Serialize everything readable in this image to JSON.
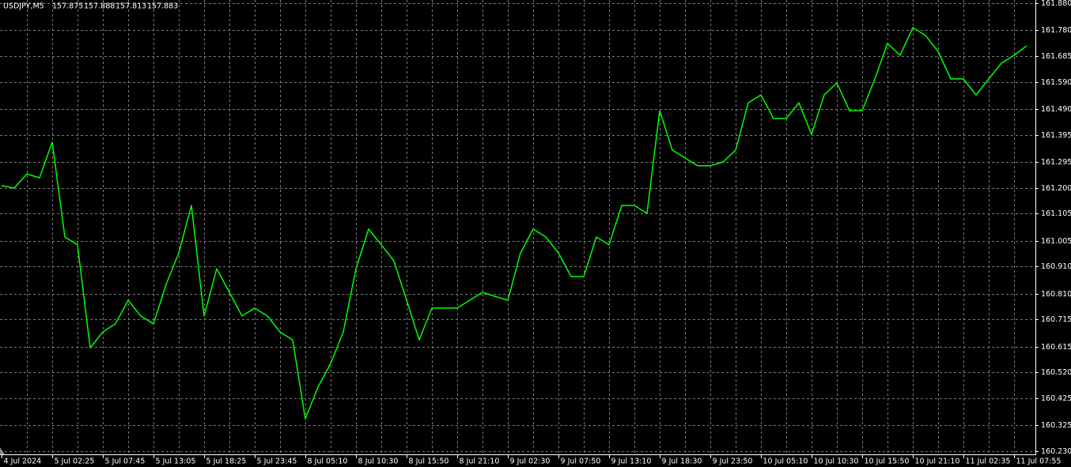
{
  "chart_data": {
    "type": "line",
    "symbol": "USDJPY,M5",
    "quote": [
      157.875,
      157.888,
      157.813,
      157.883
    ],
    "categories": [
      "4 Jul 2024",
      null,
      null,
      null,
      "5 Jul 02:25",
      null,
      null,
      null,
      "5 Jul 07:45",
      null,
      null,
      null,
      "5 Jul 13:05",
      null,
      null,
      null,
      "5 Jul 18:25",
      null,
      null,
      null,
      "5 Jul 23:45",
      null,
      null,
      null,
      "8 Jul 05:10",
      null,
      null,
      null,
      "8 Jul 10:30",
      null,
      null,
      null,
      "8 Jul 15:50",
      null,
      null,
      null,
      "8 Jul 21:10",
      null,
      null,
      null,
      "9 Jul 02:30",
      null,
      null,
      null,
      "9 Jul 07:50",
      null,
      null,
      null,
      "9 Jul 13:10",
      null,
      null,
      null,
      "9 Jul 18:30",
      null,
      null,
      null,
      "9 Jul 23:50",
      null,
      null,
      null,
      "10 Jul 05:10",
      null,
      null,
      null,
      "10 Jul 10:30",
      null,
      null,
      null,
      "10 Jul 15:50",
      null,
      null,
      null,
      "10 Jul 21:10",
      null,
      null,
      null,
      "11 Jul 02:35",
      null,
      null,
      null,
      "11 Jul 07:55",
      null
    ],
    "values": [
      161.208,
      161.199,
      161.251,
      161.237,
      161.368,
      161.019,
      160.99,
      160.611,
      160.669,
      160.699,
      160.786,
      160.728,
      160.699,
      160.844,
      160.96,
      161.135,
      160.728,
      160.902,
      160.815,
      160.728,
      160.757,
      160.728,
      160.669,
      160.64,
      160.349,
      160.466,
      160.553,
      160.669,
      160.902,
      161.048,
      160.99,
      160.931,
      160.786,
      160.64,
      160.757,
      160.757,
      160.757,
      160.786,
      160.815,
      160.8,
      160.786,
      160.96,
      161.048,
      161.019,
      160.96,
      160.873,
      160.873,
      161.019,
      160.99,
      161.135,
      161.135,
      161.106,
      161.484,
      161.339,
      161.31,
      161.281,
      161.281,
      161.295,
      161.339,
      161.513,
      161.542,
      161.455,
      161.455,
      161.513,
      161.397,
      161.542,
      161.586,
      161.484,
      161.484,
      161.601,
      161.732,
      161.688,
      161.79,
      161.761,
      161.702,
      161.601,
      161.601,
      161.542,
      161.601,
      161.659,
      161.688,
      161.723
    ],
    "color": "#00ff00",
    "ylim": [
      160.23,
      161.88
    ],
    "yticks": [
      {
        "value": 161.88,
        "label": "161.880"
      },
      {
        "value": 161.78,
        "label": "161.780"
      },
      161.685,
      {
        "value": 161.59,
        "label": "161.590"
      },
      {
        "value": 161.49,
        "label": "161.490"
      },
      161.395,
      161.295,
      {
        "value": 161.2,
        "label": "161.200"
      },
      161.105,
      161.005,
      {
        "value": 160.91,
        "label": "160.910"
      },
      {
        "value": 160.81,
        "label": "160.810"
      },
      160.715,
      160.615,
      {
        "value": 160.52,
        "label": "160.520"
      },
      160.425,
      160.325,
      {
        "value": 160.23,
        "label": "160.230"
      }
    ],
    "grid": true
  }
}
